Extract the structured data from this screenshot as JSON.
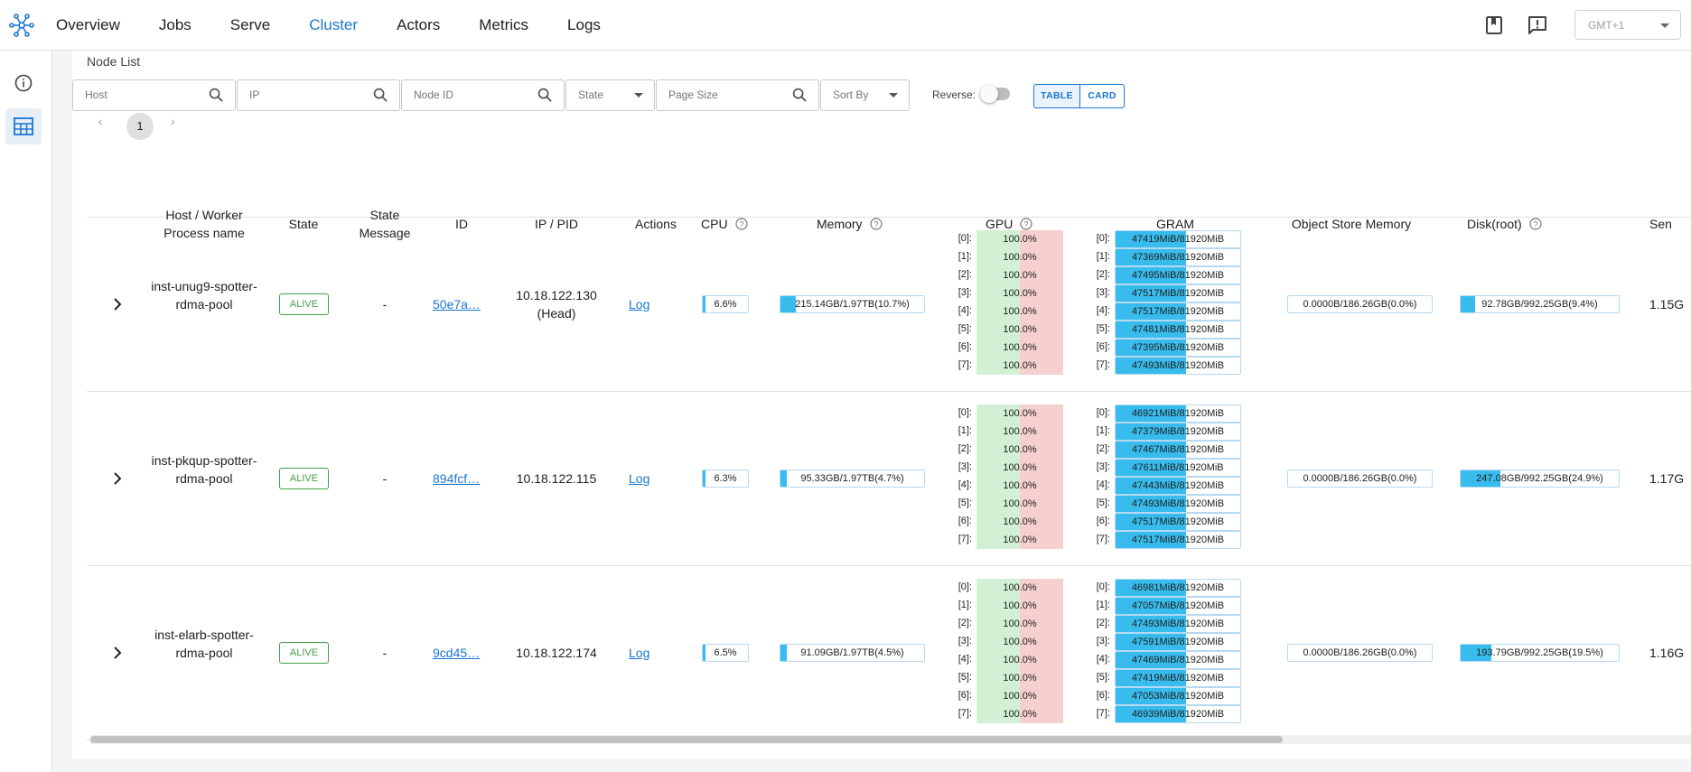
{
  "nav": {
    "items": [
      "Overview",
      "Jobs",
      "Serve",
      "Cluster",
      "Actors",
      "Metrics",
      "Logs"
    ],
    "active": "Cluster",
    "timezone": "GMT+1"
  },
  "panel": {
    "title": "Node List"
  },
  "filters": {
    "host_placeholder": "Host",
    "ip_placeholder": "IP",
    "node_id_placeholder": "Node ID",
    "state_placeholder": "State",
    "page_size_placeholder": "Page Size",
    "sort_by_placeholder": "Sort By",
    "reverse_label": "Reverse:",
    "reverse_on": false,
    "table_label": "TABLE",
    "card_label": "CARD"
  },
  "pagination": {
    "prev": "‹",
    "page": "1",
    "next": "›"
  },
  "columns": {
    "host": "Host / Worker Process name",
    "state": "State",
    "state_message": "State Message",
    "id": "ID",
    "ip_pid": "IP / PID",
    "actions": "Actions",
    "cpu": "CPU",
    "memory": "Memory",
    "gpu": "GPU",
    "gram": "GRAM",
    "object_store": "Object Store Memory",
    "disk": "Disk(root)",
    "sent": "Sen"
  },
  "rows": [
    {
      "host": "inst-unug9-spotter-rdma-pool",
      "state": "ALIVE",
      "state_message": "-",
      "id": "50e7a…",
      "ip": "10.18.122.130",
      "ip_note": "(Head)",
      "action": "Log",
      "cpu": "6.6%",
      "cpu_pct": 6.6,
      "memory": "215.14GB/1.97TB(10.7%)",
      "memory_pct": 10.7,
      "gpu_labels": [
        "[0]:",
        "[1]:",
        "[2]:",
        "[3]:",
        "[4]:",
        "[5]:",
        "[6]:",
        "[7]:"
      ],
      "gpu": [
        "100.0%",
        "100.0%",
        "100.0%",
        "100.0%",
        "100.0%",
        "100.0%",
        "100.0%",
        "100.0%"
      ],
      "gram": [
        "47419MiB/81920MiB",
        "47369MiB/81920MiB",
        "47495MiB/81920MiB",
        "47517MiB/81920MiB",
        "47517MiB/81920MiB",
        "47481MiB/81920MiB",
        "47395MiB/81920MiB",
        "47493MiB/81920MiB"
      ],
      "object_store": "0.0000B/186.26GB(0.0%)",
      "object_store_pct": 0,
      "disk": "92.78GB/992.25GB(9.4%)",
      "disk_pct": 9.4,
      "sent": "1.15G"
    },
    {
      "host": "inst-pkqup-spotter-rdma-pool",
      "state": "ALIVE",
      "state_message": "-",
      "id": "894fcf…",
      "ip": "10.18.122.115",
      "ip_note": "",
      "action": "Log",
      "cpu": "6.3%",
      "cpu_pct": 6.3,
      "memory": "95.33GB/1.97TB(4.7%)",
      "memory_pct": 4.7,
      "gpu_labels": [
        "[0]:",
        "[1]:",
        "[2]:",
        "[3]:",
        "[4]:",
        "[5]:",
        "[6]:",
        "[7]:"
      ],
      "gpu": [
        "100.0%",
        "100.0%",
        "100.0%",
        "100.0%",
        "100.0%",
        "100.0%",
        "100.0%",
        "100.0%"
      ],
      "gram": [
        "46921MiB/81920MiB",
        "47379MiB/81920MiB",
        "47467MiB/81920MiB",
        "47611MiB/81920MiB",
        "47443MiB/81920MiB",
        "47493MiB/81920MiB",
        "47517MiB/81920MiB",
        "47517MiB/81920MiB"
      ],
      "object_store": "0.0000B/186.26GB(0.0%)",
      "object_store_pct": 0,
      "disk": "247.08GB/992.25GB(24.9%)",
      "disk_pct": 24.9,
      "sent": "1.17G"
    },
    {
      "host": "inst-elarb-spotter-rdma-pool",
      "state": "ALIVE",
      "state_message": "-",
      "id": "9cd45…",
      "ip": "10.18.122.174",
      "ip_note": "",
      "action": "Log",
      "cpu": "6.5%",
      "cpu_pct": 6.5,
      "memory": "91.09GB/1.97TB(4.5%)",
      "memory_pct": 4.5,
      "gpu_labels": [
        "[0]:",
        "[1]:",
        "[2]:",
        "[3]:",
        "[4]:",
        "[5]:",
        "[6]:",
        "[7]:"
      ],
      "gpu": [
        "100.0%",
        "100.0%",
        "100.0%",
        "100.0%",
        "100.0%",
        "100.0%",
        "100.0%",
        "100.0%"
      ],
      "gram": [
        "46981MiB/81920MiB",
        "47057MiB/81920MiB",
        "47493MiB/81920MiB",
        "47591MiB/81920MiB",
        "47469MiB/81920MiB",
        "47419MiB/81920MiB",
        "47053MiB/81920MiB",
        "46939MiB/81920MiB"
      ],
      "object_store": "0.0000B/186.26GB(0.0%)",
      "object_store_pct": 0,
      "disk": "193.79GB/992.25GB(19.5%)",
      "disk_pct": 19.5,
      "sent": "1.16G"
    }
  ],
  "colors": {
    "accent": "#1976d2",
    "bar_fill": "#37bced",
    "alive": "#43a047",
    "gpu_free": "#d2f1d4",
    "gpu_used": "#f6cfcf"
  },
  "icons": [
    "ray-logo-icon",
    "book-icon",
    "feedback-icon",
    "info-icon",
    "table-icon",
    "search-icon",
    "help-icon",
    "chevron-right-icon"
  ]
}
